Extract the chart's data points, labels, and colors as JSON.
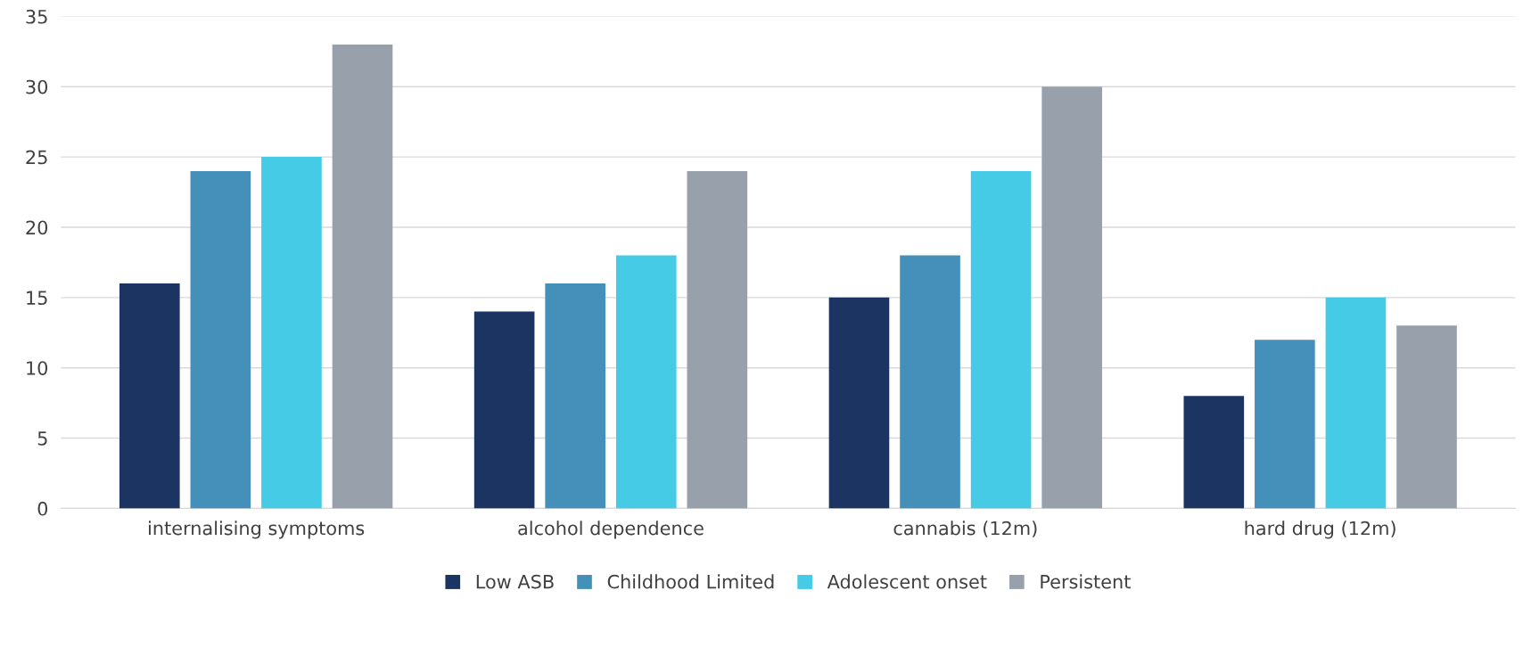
{
  "chart_data": {
    "type": "bar",
    "categories": [
      "internalising symptoms",
      "alcohol dependence",
      "cannabis (12m)",
      "hard drug (12m)"
    ],
    "series": [
      {
        "name": "Low ASB",
        "color": "#1c3461",
        "values": [
          16,
          14,
          15,
          8
        ]
      },
      {
        "name": "Childhood Limited",
        "color": "#4590bb",
        "values": [
          24,
          16,
          18,
          12
        ]
      },
      {
        "name": "Adolescent onset",
        "color": "#46cbe6",
        "values": [
          25,
          18,
          24,
          15
        ]
      },
      {
        "name": "Persistent",
        "color": "#98a1ab",
        "values": [
          33,
          24,
          30,
          13
        ]
      }
    ],
    "ylim": [
      0,
      35
    ],
    "yticks": [
      0,
      5,
      10,
      15,
      20,
      25,
      30,
      35
    ],
    "grid": "y",
    "legend": "bottom"
  }
}
